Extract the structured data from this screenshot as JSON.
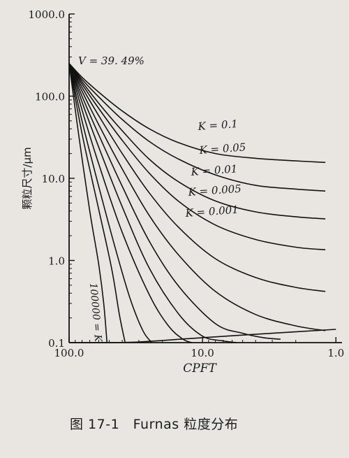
{
  "chart_data": {
    "type": "line",
    "title": "",
    "xlabel": "CPFT",
    "ylabel": "颗粒尺寸/μm",
    "x_scale": "log",
    "y_scale": "log",
    "x_direction": "decreasing",
    "xlim": [
      100.0,
      0.9
    ],
    "ylim": [
      0.1,
      1000.0
    ],
    "x_ticks": [
      "100.0",
      "10.0",
      "1.0"
    ],
    "y_ticks": [
      "1000.0",
      "100.0",
      "10.0",
      "1.0",
      "0.1"
    ],
    "annotations": {
      "porosity": "V = 39. 49%",
      "k_labels": [
        "K = 0.1",
        "K = 0.05",
        "K = 0.01",
        "K = 0.005",
        "K = 0.001"
      ],
      "k_large": "100000 = K"
    },
    "converge_point": {
      "x": 100.0,
      "y": 250.0
    },
    "series": [
      {
        "name": "K=0.1",
        "x": [
          100,
          80,
          60,
          40,
          25,
          15,
          8,
          4,
          2,
          1.2
        ],
        "y": [
          250,
          170,
          112,
          66,
          40,
          27,
          20,
          17.5,
          16.3,
          15.6
        ]
      },
      {
        "name": "K=0.05",
        "x": [
          100,
          80,
          60,
          40,
          25,
          15,
          8,
          4,
          2,
          1.2
        ],
        "y": [
          250,
          160,
          98,
          52,
          28,
          17,
          11,
          8.2,
          7.4,
          7.0
        ]
      },
      {
        "name": "K=0.01",
        "x": [
          100,
          80,
          60,
          40,
          25,
          15,
          8,
          4,
          2,
          1.2
        ],
        "y": [
          250,
          150,
          82,
          38,
          17,
          9,
          5.3,
          3.9,
          3.4,
          3.2
        ]
      },
      {
        "name": "K=0.005",
        "x": [
          100,
          80,
          60,
          40,
          25,
          15,
          8,
          4,
          2,
          1.2
        ],
        "y": [
          250,
          140,
          71,
          29,
          11.5,
          5.2,
          2.7,
          1.8,
          1.45,
          1.35
        ]
      },
      {
        "name": "K=0.001",
        "x": [
          100,
          80,
          60,
          40,
          25,
          15,
          8,
          4,
          2,
          1.2
        ],
        "y": [
          250,
          128,
          58,
          20,
          6.6,
          2.5,
          1.05,
          0.62,
          0.47,
          0.42
        ]
      },
      {
        "name": "",
        "x": [
          100,
          80,
          60,
          40,
          25,
          15,
          8,
          4,
          2,
          1.2
        ],
        "y": [
          250,
          115,
          45,
          13,
          3.5,
          1.15,
          0.42,
          0.22,
          0.16,
          0.14
        ]
      },
      {
        "name": "",
        "x": [
          100,
          80,
          60,
          40,
          25,
          15,
          8,
          5,
          3.5,
          2.6
        ],
        "y": [
          250,
          100,
          34,
          8.0,
          1.7,
          0.48,
          0.17,
          0.13,
          0.115,
          0.11
        ]
      },
      {
        "name": "",
        "x": [
          100,
          80,
          60,
          40,
          25,
          15,
          10,
          7,
          5.5
        ],
        "y": [
          250,
          85,
          24,
          4.5,
          0.8,
          0.22,
          0.12,
          0.105,
          0.1
        ]
      },
      {
        "name": "",
        "x": [
          100,
          80,
          60,
          40,
          25,
          18,
          14,
          12
        ],
        "y": [
          250,
          68,
          15,
          2.2,
          0.38,
          0.16,
          0.11,
          0.1
        ]
      },
      {
        "name": "",
        "x": [
          100,
          80,
          60,
          45,
          35,
          28,
          24
        ],
        "y": [
          250,
          50,
          8,
          1.4,
          0.35,
          0.14,
          0.1
        ]
      },
      {
        "name": "",
        "x": [
          100,
          80,
          60,
          48,
          42,
          38
        ],
        "y": [
          250,
          35,
          4.2,
          0.8,
          0.22,
          0.1
        ]
      },
      {
        "name": "",
        "x": [
          100,
          85,
          70,
          60,
          55,
          52
        ],
        "y": [
          250,
          35,
          4.0,
          0.9,
          0.3,
          0.1
        ]
      }
    ],
    "lower_boundary": {
      "x": [
        100,
        60,
        30,
        10,
        3,
        1.0
      ],
      "y": [
        0.1,
        0.1,
        0.102,
        0.115,
        0.13,
        0.145
      ]
    },
    "grid": false,
    "legend": "none"
  },
  "caption": "图 17-1　Furnas 粒度分布"
}
